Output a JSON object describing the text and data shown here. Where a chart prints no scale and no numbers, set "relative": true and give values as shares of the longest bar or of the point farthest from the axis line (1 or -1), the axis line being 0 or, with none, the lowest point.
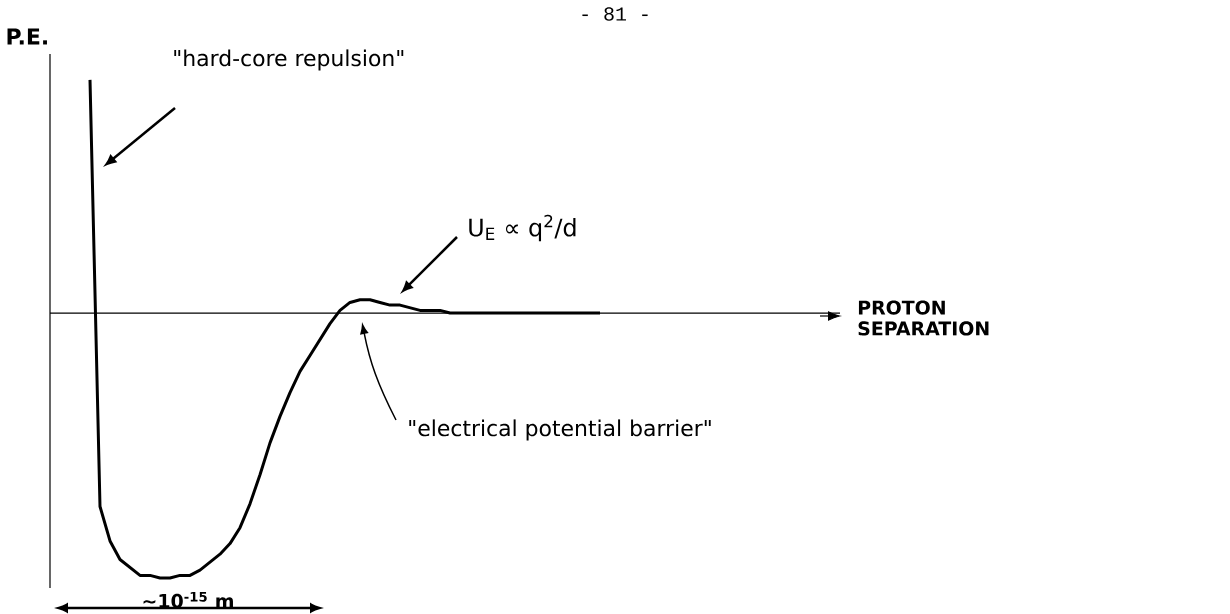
{
  "chart_data": {
    "type": "line",
    "relative": true,
    "ylabel": "P.E.",
    "annotations": [
      "- 81 -",
      "\"hard-core repulsion\"",
      "U$_{E}$ ∝ q$^{2}$/d",
      "\"electrical potential barrier\"",
      "~10$^{-15}$ m",
      "PROTON SEPARATION"
    ],
    "categories": [
      null,
      null,
      null,
      null,
      null,
      null,
      null,
      null,
      null,
      null,
      null,
      null,
      null,
      null,
      null,
      null,
      null,
      null,
      null,
      null,
      null,
      null,
      null,
      null,
      null,
      null,
      null,
      null,
      null,
      null,
      null,
      null,
      null,
      null,
      null,
      null,
      null,
      null,
      null,
      null,
      null,
      null,
      null,
      null,
      null,
      null,
      null,
      null,
      null,
      null,
      null,
      null
    ],
    "series": [
      {
        "color": "#000000",
        "values": [
          0.88,
          -0.73,
          -0.86,
          -0.93,
          -0.96,
          -0.99,
          -0.99,
          -1,
          -1,
          -0.99,
          -0.99,
          -0.97,
          -0.94,
          -0.91,
          -0.87,
          -0.81,
          -0.72,
          -0.61,
          -0.49,
          -0.39,
          -0.3,
          -0.22,
          -0.16,
          -0.1,
          -0.04,
          0.01,
          0.04,
          0.05,
          0.05,
          0.04,
          0.03,
          0.03,
          0.02,
          0.01,
          0.01,
          0.01,
          0,
          0,
          0,
          0,
          0,
          0,
          0,
          0,
          0,
          0,
          0,
          0,
          0,
          0,
          0,
          0
        ]
      }
    ]
  }
}
